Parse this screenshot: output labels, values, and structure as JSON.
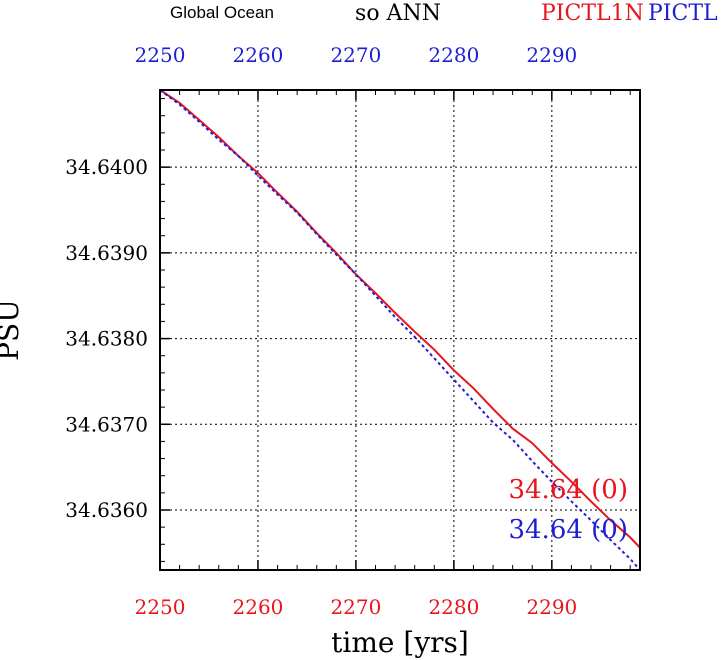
{
  "header": {
    "region": "Global Ocean",
    "variable": "so ANN",
    "case_red": "PICTL1N",
    "case_blue": "PICTL"
  },
  "colors": {
    "red": "#e8141e",
    "blue": "#1e1ed2",
    "axis": "#000000",
    "grid": "#000000"
  },
  "chart_data": {
    "type": "line",
    "xlabel": "time [yrs]",
    "ylabel": "PSU",
    "xlim": [
      2250,
      2299
    ],
    "ylim": [
      34.6353,
      34.6409
    ],
    "x_ticks": [
      2250,
      2260,
      2270,
      2280,
      2290
    ],
    "x_tick_labels_bottom": [
      "2250",
      "2260",
      "2270",
      "2280",
      "2290"
    ],
    "x_tick_labels_top": [
      "2250",
      "2260",
      "2270",
      "2280",
      "2290"
    ],
    "y_ticks": [
      34.636,
      34.637,
      34.638,
      34.639,
      34.64
    ],
    "y_tick_labels": [
      "34.6360",
      "34.6370",
      "34.6380",
      "34.6390",
      "34.6400"
    ],
    "grid": true,
    "x": [
      2250,
      2252,
      2254,
      2256,
      2258,
      2260,
      2262,
      2264,
      2266,
      2268,
      2270,
      2272,
      2274,
      2276,
      2278,
      2280,
      2282,
      2284,
      2286,
      2288,
      2290,
      2292,
      2294,
      2296,
      2298,
      2299
    ],
    "series": [
      {
        "color": "red",
        "dash": "solid",
        "annotation": "34.64 (0)",
        "values": [
          34.6409,
          34.64075,
          34.64055,
          34.64035,
          34.64013,
          34.63993,
          34.6397,
          34.63948,
          34.63923,
          34.639,
          34.63875,
          34.63853,
          34.6383,
          34.63808,
          34.63787,
          34.63763,
          34.63742,
          34.63718,
          34.63695,
          34.63678,
          34.63655,
          34.63633,
          34.6361,
          34.63588,
          34.63568,
          34.63556
        ]
      },
      {
        "color": "blue",
        "dash": "dotted",
        "annotation": "34.64 (0)",
        "values": [
          34.6409,
          34.64073,
          34.64053,
          34.64032,
          34.64013,
          34.6399,
          34.63968,
          34.63947,
          34.63922,
          34.63898,
          34.63875,
          34.6385,
          34.63825,
          34.63802,
          34.63777,
          34.63752,
          34.63727,
          34.63702,
          34.63682,
          34.63657,
          34.63633,
          34.6361,
          34.63588,
          34.63565,
          34.63543,
          34.6353
        ]
      }
    ]
  }
}
